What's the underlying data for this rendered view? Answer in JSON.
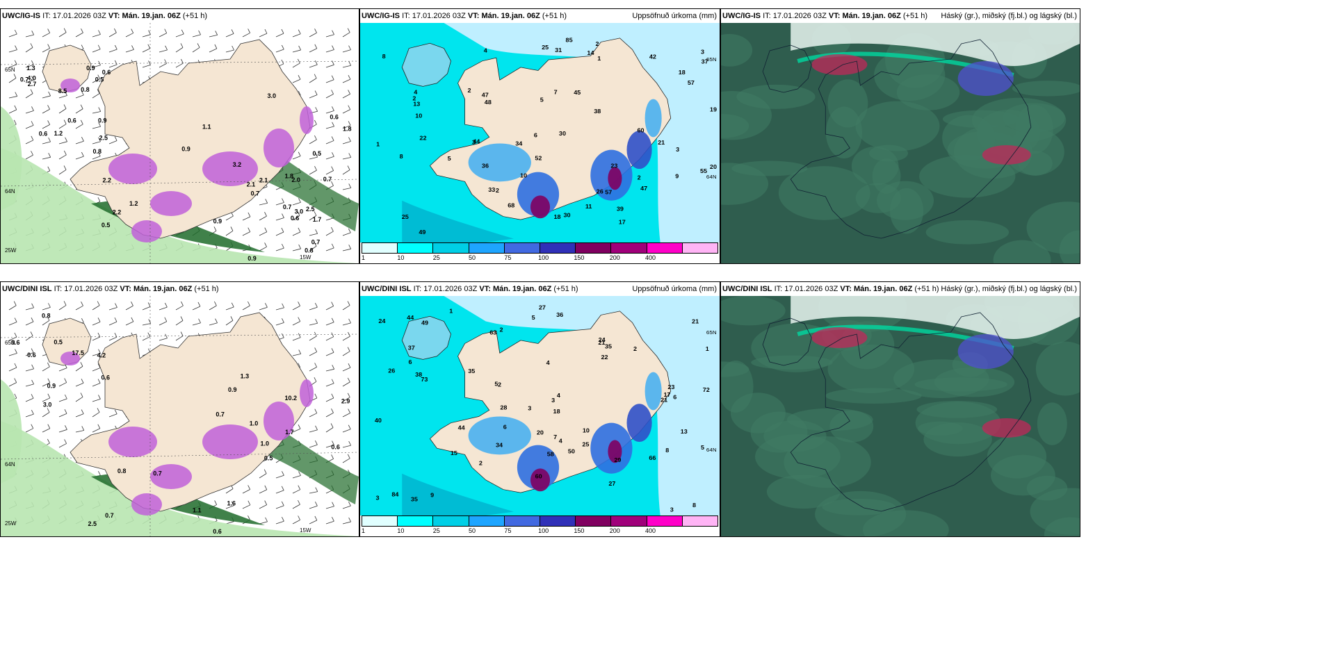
{
  "rows": [
    {
      "panels": [
        {
          "model": "UWC/IG-IS",
          "it_label": "IT:",
          "it_value": "17.01.2026 03Z",
          "vt_label": "VT: Mán. 19.jan. 06Z",
          "lead": "(+51 h)",
          "right_title": "",
          "kind": "snow",
          "values": [
            "0.9",
            "0.7",
            "0.6",
            "0.5",
            "0.9",
            "0.7",
            "0.6",
            "1.2",
            "2.0",
            "1.2",
            "1.1",
            "0.5",
            "0.8",
            "0.9",
            "0.6",
            "0.7",
            "2.2",
            "3.0",
            "2.5",
            "2.2",
            "1.8",
            "8.5",
            "3.0",
            "2.1",
            "4.0",
            "2.5",
            "3.2",
            "0.6",
            "0.9",
            "2.1",
            "2.7",
            "0.8",
            "1.8",
            "1.3",
            "0.7",
            "1.7",
            "0.6",
            "0.8",
            "0.7",
            "0.9",
            "0.5"
          ],
          "coords": [
            "65N",
            "64N",
            "25W",
            "15W"
          ]
        },
        {
          "model": "UWC/IG-IS",
          "it_label": "IT:",
          "it_value": "17.01.2026 03Z",
          "vt_label": "VT: Mán. 19.jan. 06Z",
          "lead": "(+51 h)",
          "right_title": "Uppsöfnuð úrkoma (mm)",
          "kind": "precip",
          "values": [
            "2",
            "1",
            "2",
            "1",
            "2",
            "3",
            "4",
            "5",
            "7",
            "8",
            "9",
            "10",
            "17",
            "22",
            "20",
            "25",
            "14",
            "30",
            "39",
            "26",
            "34",
            "23",
            "30",
            "37",
            "47",
            "57",
            "52",
            "44",
            "33",
            "47",
            "45",
            "18",
            "21",
            "19",
            "38",
            "36",
            "42",
            "55",
            "49",
            "68",
            "10",
            "11",
            "25",
            "18",
            "8",
            "5",
            "6",
            "3",
            "2",
            "3",
            "4",
            "13",
            "48",
            "60",
            "85",
            "57",
            "31",
            "2"
          ],
          "coords": [
            "65N",
            "64N"
          ],
          "colorbar": {
            "colors": [
              "#e0ffff",
              "#00ffff",
              "#00cfe6",
              "#1ea5ff",
              "#4169e1",
              "#3030b8",
              "#800060",
              "#a0007a",
              "#ff00c8",
              "#ffb4f5"
            ],
            "ticks": [
              "1",
              "10",
              "25",
              "50",
              "75",
              "100",
              "150",
              "200",
              "400"
            ]
          }
        },
        {
          "model": "UWC/IG-IS",
          "it_label": "IT:",
          "it_value": "17.01.2026 03Z",
          "vt_label": "VT: Mán. 19.jan. 06Z",
          "lead": "(+51 h)",
          "right_title": "Háský (gr.), miðský (fj.bl.) og lágský (bl.)",
          "kind": "cloud",
          "values": [],
          "coords": []
        }
      ]
    },
    {
      "panels": [
        {
          "model": "UWC/DINI ISL",
          "it_label": "IT:",
          "it_value": "17.01.2026 03Z",
          "vt_label": "VT: Mán. 19.jan. 06Z",
          "lead": "(+51 h)",
          "right_title": "",
          "kind": "snow",
          "values": [
            "0.9",
            "0.7",
            "0.6",
            "0.5",
            "0.8",
            "1.0",
            "0.6",
            "0.7",
            "2.9",
            "4.2",
            "1.1",
            "1.3",
            "0.6",
            "1.6",
            "1.0",
            "17.5",
            "10.2",
            "1.7",
            "0.8",
            "0.6",
            "0.5",
            "3.0",
            "2.5",
            "0.9",
            "0.6",
            "0.7"
          ],
          "coords": [
            "65N",
            "64N",
            "25W",
            "15W"
          ]
        },
        {
          "model": "UWC/DINI ISL",
          "it_label": "IT:",
          "it_value": "17.01.2026 03Z",
          "vt_label": "VT: Mán. 19.jan. 06Z",
          "lead": "(+51 h)",
          "right_title": "Uppsöfnuð úrkoma (mm)",
          "kind": "precip",
          "values": [
            "2",
            "3",
            "2",
            "1",
            "2",
            "4",
            "5",
            "6",
            "8",
            "20",
            "21",
            "23",
            "21",
            "26",
            "22",
            "24",
            "28",
            "27",
            "35",
            "38",
            "44",
            "36",
            "24",
            "29",
            "25",
            "35",
            "34",
            "35",
            "63",
            "50",
            "84",
            "9",
            "21",
            "37",
            "44",
            "72",
            "73",
            "60",
            "66",
            "58",
            "10",
            "18",
            "7",
            "8",
            "5",
            "4",
            "3",
            "5",
            "6",
            "1",
            "2",
            "3",
            "4",
            "13",
            "17",
            "27",
            "40",
            "49",
            "15",
            "3",
            "6"
          ],
          "coords": [
            "65N",
            "64N"
          ],
          "colorbar": {
            "colors": [
              "#e0ffff",
              "#00ffff",
              "#00cfe6",
              "#1ea5ff",
              "#4169e1",
              "#3030b8",
              "#800060",
              "#a0007a",
              "#ff00c8",
              "#ffb4f5"
            ],
            "ticks": [
              "1",
              "10",
              "25",
              "50",
              "75",
              "100",
              "150",
              "200",
              "400"
            ]
          }
        },
        {
          "model": "UWC/DINI ISL",
          "it_label": "IT:",
          "it_value": "17.01.2026 03Z",
          "vt_label": "VT: Mán. 19.jan. 06Z",
          "lead": "(+51 h)",
          "right_title": "Háský (gr.), miðský (fj.bl.) og lágský (bl.)",
          "kind": "cloud",
          "values": [],
          "coords": []
        }
      ]
    }
  ],
  "colors": {
    "land": "#f5e6d3",
    "sea_light": "#bfefff",
    "sea_mid": "#00e5ee",
    "green_light": "#b8e6b0",
    "green_dark": "#1f6b2a",
    "magenta": "#c060d8",
    "cloud_base": "#2f5d4e",
    "cloud_mid": "#3f7a62",
    "cloud_teal": "#00d8a0",
    "cloud_red": "#c0285a",
    "cloud_blue": "#5050d0"
  }
}
